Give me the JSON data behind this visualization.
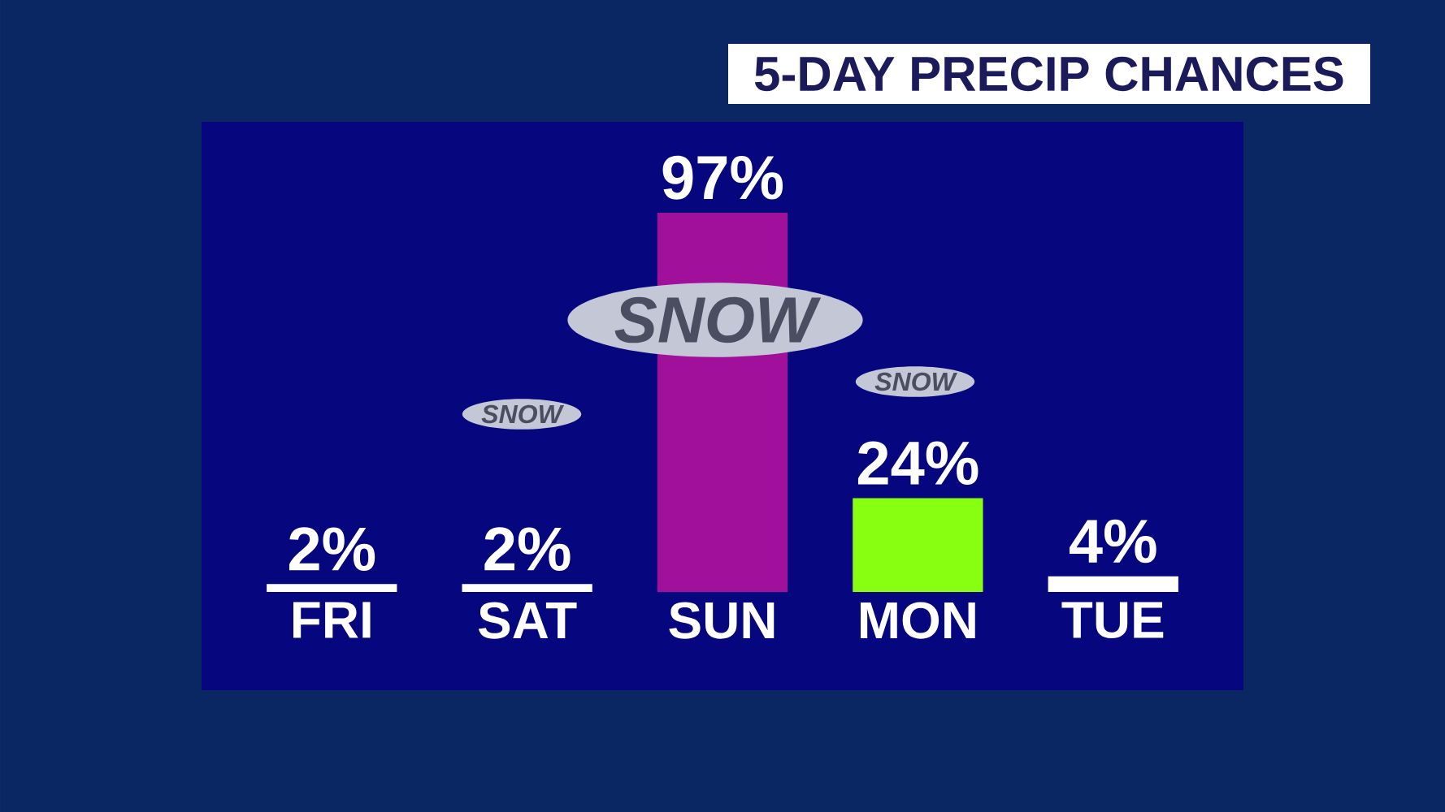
{
  "chart_data": {
    "type": "bar",
    "title": "5-DAY PRECIP CHANCES",
    "categories": [
      "FRI",
      "SAT",
      "SUN",
      "MON",
      "TUE"
    ],
    "values": [
      2,
      2,
      97,
      24,
      4
    ],
    "colors": [
      "#ffffff",
      "#ffffff",
      "#a0109a",
      "#88ff10",
      "#ffffff"
    ],
    "value_labels": [
      "2%",
      "2%",
      "97%",
      "24%",
      "4%"
    ],
    "annotations": [
      "SNOW",
      "SNOW",
      "SNOW"
    ]
  }
}
